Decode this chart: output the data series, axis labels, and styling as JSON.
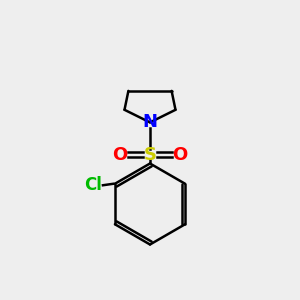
{
  "background_color": "#eeeeee",
  "atom_colors": {
    "N": "#0000FF",
    "O": "#FF0000",
    "S": "#CCCC00",
    "Cl": "#00BB00",
    "C": "#000000"
  },
  "bond_lw": 1.8,
  "figsize": [
    3.0,
    3.0
  ],
  "dpi": 100
}
